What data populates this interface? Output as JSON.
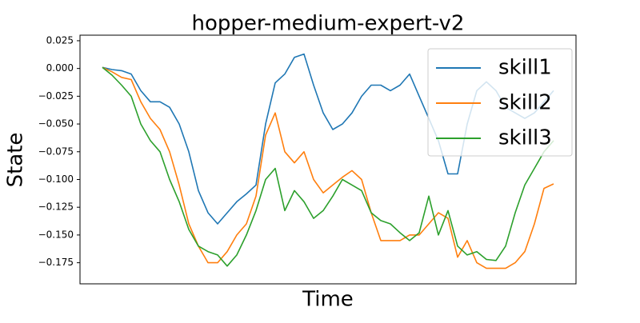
{
  "chart_data": {
    "type": "line",
    "title": "hopper-medium-expert-v2",
    "x_label": "Time",
    "y_label": "State",
    "categories": [
      null,
      null,
      null,
      null,
      null,
      null,
      null,
      null,
      null,
      null,
      null,
      null,
      null,
      null,
      null,
      null,
      null,
      null,
      null,
      null,
      null,
      null,
      null,
      null,
      null,
      null,
      null,
      null,
      null,
      null,
      null,
      null,
      null,
      null,
      null,
      null,
      null,
      null,
      null,
      null,
      null,
      null,
      null,
      null,
      null,
      null,
      null,
      null
    ],
    "ylim": [
      -0.194,
      0.03
    ],
    "yticks": [
      0.025,
      {
        "value": 0,
        "label": "0.000"
      },
      {
        "value": -0.025,
        "label": "−0.025"
      },
      {
        "value": -0.05,
        "label": "−0.050"
      },
      {
        "value": -0.075,
        "label": "−0.075"
      },
      {
        "value": -0.1,
        "label": "−0.100"
      },
      {
        "value": -0.125,
        "label": "−0.125"
      },
      {
        "value": -0.15,
        "label": "−0.150"
      },
      {
        "value": -0.175,
        "label": "−0.175"
      }
    ],
    "legend": "upper right",
    "series": [
      {
        "name": "skill1",
        "color": "#1f77b4",
        "values": [
          0.001,
          -0.001,
          -0.002,
          -0.005,
          -0.02,
          -0.03,
          -0.03,
          -0.035,
          -0.05,
          -0.075,
          -0.11,
          -0.13,
          -0.14,
          -0.13,
          -0.12,
          -0.113,
          -0.105,
          -0.05,
          -0.013,
          -0.005,
          0.01,
          0.013,
          -0.015,
          -0.04,
          -0.055,
          -0.05,
          -0.04,
          -0.025,
          -0.015,
          -0.015,
          -0.02,
          -0.015,
          -0.005,
          -0.025,
          -0.045,
          -0.065,
          -0.095,
          -0.095,
          -0.05,
          -0.02,
          -0.012,
          -0.02,
          -0.035,
          -0.04,
          -0.045,
          -0.04,
          -0.03,
          -0.02
        ]
      },
      {
        "name": "skill2",
        "color": "#ff7f0e",
        "values": [
          0.001,
          -0.003,
          -0.008,
          -0.01,
          -0.03,
          -0.045,
          -0.055,
          -0.075,
          -0.105,
          -0.14,
          -0.16,
          -0.175,
          -0.175,
          -0.165,
          -0.15,
          -0.14,
          -0.115,
          -0.06,
          -0.04,
          -0.075,
          -0.085,
          -0.075,
          -0.1,
          -0.112,
          -0.105,
          -0.098,
          -0.092,
          -0.1,
          -0.13,
          -0.155,
          -0.155,
          -0.155,
          -0.15,
          -0.15,
          -0.14,
          -0.13,
          -0.135,
          -0.17,
          -0.155,
          -0.175,
          -0.18,
          -0.18,
          -0.18,
          -0.175,
          -0.165,
          -0.14,
          -0.108,
          -0.104
        ]
      },
      {
        "name": "skill3",
        "color": "#2ca02c",
        "values": [
          0.001,
          -0.006,
          -0.015,
          -0.025,
          -0.05,
          -0.065,
          -0.075,
          -0.1,
          -0.12,
          -0.145,
          -0.16,
          -0.165,
          -0.168,
          -0.178,
          -0.168,
          -0.15,
          -0.128,
          -0.1,
          -0.09,
          -0.128,
          -0.11,
          -0.12,
          -0.135,
          -0.128,
          -0.115,
          -0.1,
          -0.105,
          -0.11,
          -0.13,
          -0.137,
          -0.14,
          -0.148,
          -0.155,
          -0.148,
          -0.115,
          -0.15,
          -0.128,
          -0.16,
          -0.168,
          -0.165,
          -0.172,
          -0.173,
          -0.16,
          -0.13,
          -0.105,
          -0.09,
          -0.075,
          -0.065
        ]
      }
    ]
  }
}
